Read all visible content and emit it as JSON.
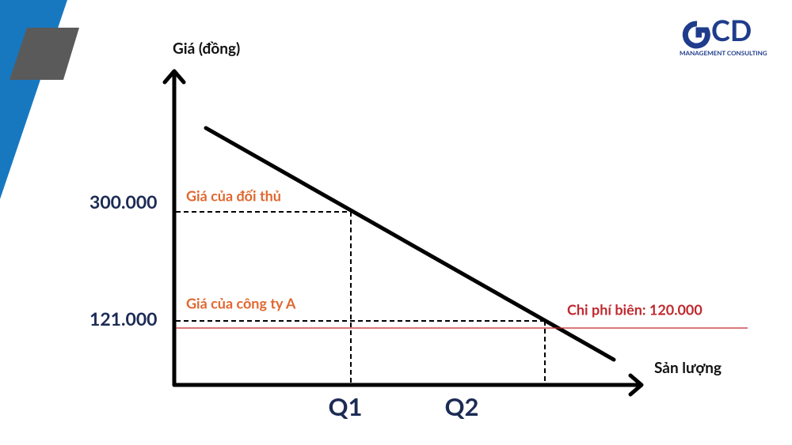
{
  "logo": {
    "brand": "CD",
    "subtitle": "MANAGEMENT CONSULTING"
  },
  "axes": {
    "y_label": "Giá (đồng)",
    "x_label": "Sản lượng"
  },
  "y_ticks": [
    "300.000",
    "121.000"
  ],
  "x_ticks": [
    "Q1",
    "Q2"
  ],
  "annotations": {
    "rival_price": "Giá của đối thủ",
    "company_price": "Giá của công ty A",
    "marginal_cost": "Chi phí biên: 120.000"
  }
}
